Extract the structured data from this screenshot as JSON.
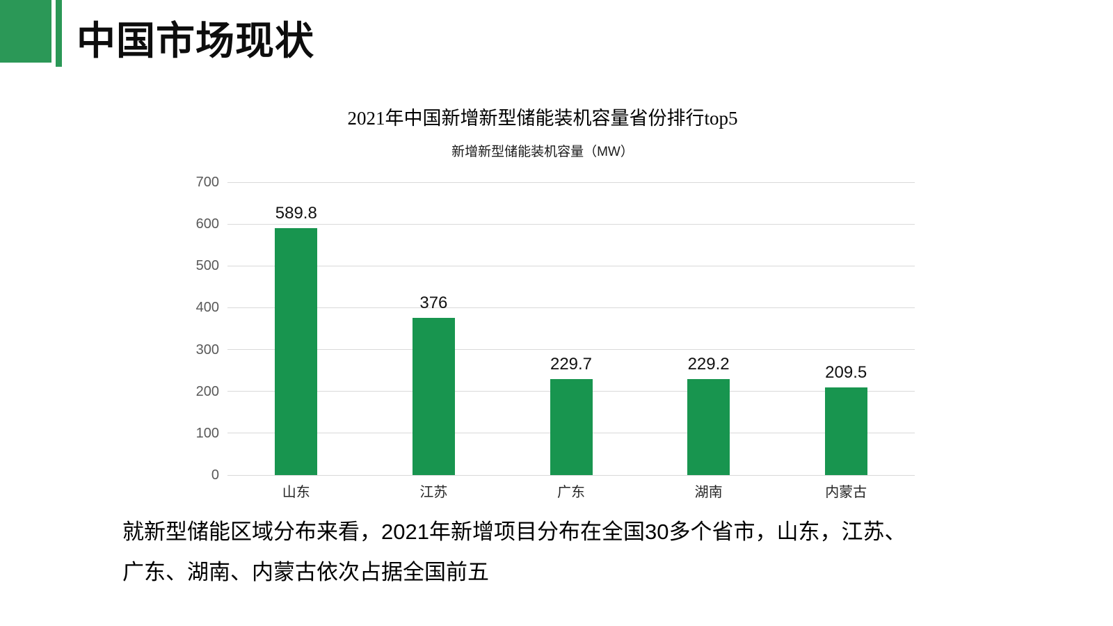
{
  "header": {
    "title": "中国市场现状",
    "accent_color": "#2b9857"
  },
  "chart_data": {
    "type": "bar",
    "title": "2021年中国新增新型储能装机容量省份排行top5",
    "subtitle": "新增新型储能装机容量（MW）",
    "categories": [
      "山东",
      "江苏",
      "广东",
      "湖南",
      "内蒙古"
    ],
    "values": [
      589.8,
      376,
      229.7,
      229.2,
      209.5
    ],
    "value_labels": [
      "589.8",
      "376",
      "229.7",
      "229.2",
      "209.5"
    ],
    "xlabel": "",
    "ylabel": "",
    "ylim": [
      0,
      700
    ],
    "yticks": [
      0,
      100,
      200,
      300,
      400,
      500,
      600,
      700
    ],
    "grid": true,
    "legend_position": "none",
    "bar_color": "#18954f",
    "gridline_color": "#d9d9d9",
    "tick_label_color": "#595959"
  },
  "caption": {
    "line1": "就新型储能区域分布来看，2021年新增项目分布在全国30多个省市，山东，江苏、",
    "line2": "广东、湖南、内蒙古依次占据全国前五"
  }
}
